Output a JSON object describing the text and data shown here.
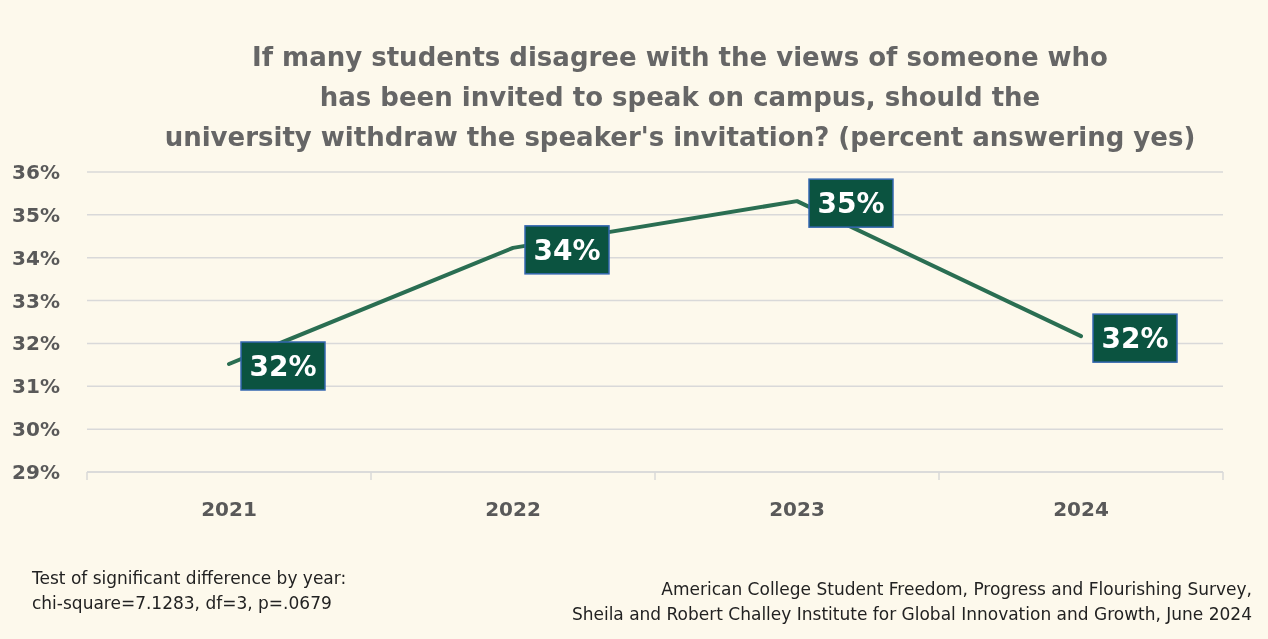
{
  "chart_data": {
    "type": "line",
    "title": "If many students disagree with the views of someone who\nhas been invited to speak on campus, should the\nuniversity withdraw the speaker's invitation? (percent answering yes)",
    "categories": [
      "2021",
      "2022",
      "2023",
      "2024"
    ],
    "series": [
      {
        "color": "#2a6e52",
        "values": [
          31.52,
          34.23,
          35.32,
          32.17
        ],
        "value_labels": [
          "32%",
          "34%",
          "35%",
          "32%"
        ]
      }
    ],
    "ylim": [
      29,
      36
    ],
    "yticks": [
      {
        "value": 29,
        "label": "29%"
      },
      {
        "value": 30,
        "label": "30%"
      },
      {
        "value": 31,
        "label": "31%"
      },
      {
        "value": 32,
        "label": "32%"
      },
      {
        "value": 33,
        "label": "33%"
      },
      {
        "value": 34,
        "label": "34%"
      },
      {
        "value": 35,
        "label": "35%"
      },
      {
        "value": 36,
        "label": "36%"
      }
    ],
    "grid": "y",
    "marker": "none",
    "line_style": "solid",
    "annotations": [
      "Test of significant difference by year:\nchi-square=7.1283, df=3, p=.0679",
      "American College Student Freedom, Progress and Flourishing Survey,\nSheila and Robert Challey Institute for Global Innovation and Growth, June 2024"
    ]
  }
}
